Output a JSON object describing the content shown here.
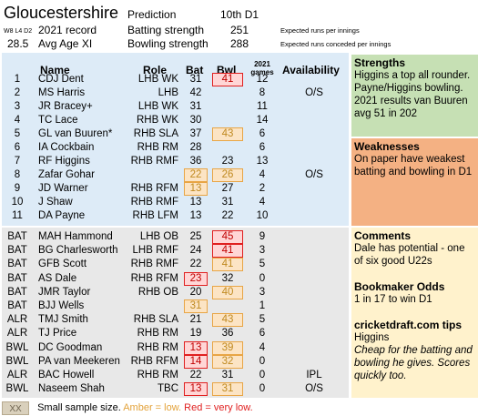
{
  "header": {
    "team": "Gloucestershire",
    "record_small": "W8 L4 D2",
    "record_label": "2021 record",
    "avg_age_value": "28.5",
    "avg_age_label": "Avg Age XI",
    "prediction_label": "Prediction",
    "prediction_value": "10th D1",
    "batting_label": "Batting strength",
    "batting_value": "251",
    "bowling_label": "Bowling strength",
    "bowling_value": "288",
    "batting_note": "Expected runs per innings",
    "bowling_note": "Expected runs conceded per innings"
  },
  "table": {
    "headers": {
      "name": "Name",
      "role": "Role",
      "bat": "Bat",
      "bwl": "Bwl",
      "games": "2021 games",
      "availability": "Availability"
    },
    "xi": [
      {
        "key": "1",
        "name": "CDJ Dent",
        "role": "LHB WK",
        "bat": "31",
        "bwl": "41",
        "games": "12",
        "avail": "",
        "bat_flag": "",
        "bwl_flag": "red"
      },
      {
        "key": "2",
        "name": "MS Harris",
        "role": "LHB",
        "bat": "42",
        "bwl": "",
        "games": "8",
        "avail": "O/S",
        "bat_flag": "",
        "bwl_flag": ""
      },
      {
        "key": "3",
        "name": "JR Bracey+",
        "role": "LHB WK",
        "bat": "31",
        "bwl": "",
        "games": "11",
        "avail": "",
        "bat_flag": "",
        "bwl_flag": ""
      },
      {
        "key": "4",
        "name": "TC Lace",
        "role": "RHB WK",
        "bat": "30",
        "bwl": "",
        "games": "14",
        "avail": "",
        "bat_flag": "",
        "bwl_flag": ""
      },
      {
        "key": "5",
        "name": "GL van Buuren*",
        "role": "RHB SLA",
        "bat": "37",
        "bwl": "43",
        "games": "6",
        "avail": "",
        "bat_flag": "",
        "bwl_flag": "amber"
      },
      {
        "key": "6",
        "name": "IA Cockbain",
        "role": "RHB RM",
        "bat": "28",
        "bwl": "",
        "games": "6",
        "avail": "",
        "bat_flag": "",
        "bwl_flag": ""
      },
      {
        "key": "7",
        "name": "RF Higgins",
        "role": "RHB RMF",
        "bat": "36",
        "bwl": "23",
        "games": "13",
        "avail": "",
        "bat_flag": "",
        "bwl_flag": ""
      },
      {
        "key": "8",
        "name": "Zafar Gohar",
        "role": "",
        "bat": "22",
        "bwl": "26",
        "games": "4",
        "avail": "O/S",
        "bat_flag": "amber",
        "bwl_flag": "amber"
      },
      {
        "key": "9",
        "name": "JD Warner",
        "role": "RHB RFM",
        "bat": "13",
        "bwl": "27",
        "games": "2",
        "avail": "",
        "bat_flag": "amber",
        "bwl_flag": ""
      },
      {
        "key": "10",
        "name": "J Shaw",
        "role": "RHB RMF",
        "bat": "13",
        "bwl": "31",
        "games": "4",
        "avail": "",
        "bat_flag": "",
        "bwl_flag": ""
      },
      {
        "key": "11",
        "name": "DA Payne",
        "role": "RHB LFM",
        "bat": "13",
        "bwl": "22",
        "games": "10",
        "avail": "",
        "bat_flag": "",
        "bwl_flag": ""
      }
    ],
    "squad": [
      {
        "key": "BAT",
        "name": "MAH Hammond",
        "role": "LHB OB",
        "bat": "25",
        "bwl": "45",
        "games": "9",
        "avail": "",
        "bat_flag": "",
        "bwl_flag": "red"
      },
      {
        "key": "BAT",
        "name": "BG Charlesworth",
        "role": "LHB RMF",
        "bat": "24",
        "bwl": "41",
        "games": "3",
        "avail": "",
        "bat_flag": "",
        "bwl_flag": "red"
      },
      {
        "key": "BAT",
        "name": "GFB Scott",
        "role": "RHB RMF",
        "bat": "22",
        "bwl": "41",
        "games": "5",
        "avail": "",
        "bat_flag": "",
        "bwl_flag": "amber"
      },
      {
        "key": "BAT",
        "name": "AS Dale",
        "role": "RHB RFM",
        "bat": "23",
        "bwl": "32",
        "games": "0",
        "avail": "",
        "bat_flag": "red",
        "bwl_flag": ""
      },
      {
        "key": "BAT",
        "name": "JMR Taylor",
        "role": "RHB OB",
        "bat": "20",
        "bwl": "40",
        "games": "3",
        "avail": "",
        "bat_flag": "",
        "bwl_flag": "amber"
      },
      {
        "key": "BAT",
        "name": "BJJ Wells",
        "role": "",
        "bat": "31",
        "bwl": "",
        "games": "1",
        "avail": "",
        "bat_flag": "amber",
        "bwl_flag": ""
      },
      {
        "key": "ALR",
        "name": "TMJ Smith",
        "role": "RHB SLA",
        "bat": "21",
        "bwl": "43",
        "games": "5",
        "avail": "",
        "bat_flag": "",
        "bwl_flag": "amber"
      },
      {
        "key": "ALR",
        "name": "TJ Price",
        "role": "RHB RM",
        "bat": "19",
        "bwl": "36",
        "games": "6",
        "avail": "",
        "bat_flag": "",
        "bwl_flag": ""
      },
      {
        "key": "BWL",
        "name": "DC Goodman",
        "role": "RHB RM",
        "bat": "13",
        "bwl": "39",
        "games": "4",
        "avail": "",
        "bat_flag": "red",
        "bwl_flag": "amber"
      },
      {
        "key": "BWL",
        "name": "PA van Meekeren",
        "role": "RHB RFM",
        "bat": "14",
        "bwl": "32",
        "games": "0",
        "avail": "",
        "bat_flag": "red",
        "bwl_flag": "amber"
      },
      {
        "key": "ALR",
        "name": "BAC Howell",
        "role": "RHB RM",
        "bat": "22",
        "bwl": "31",
        "games": "0",
        "avail": "IPL",
        "bat_flag": "",
        "bwl_flag": ""
      },
      {
        "key": "BWL",
        "name": "Naseem Shah",
        "role": "TBC",
        "bat": "13",
        "bwl": "31",
        "games": "0",
        "avail": "O/S",
        "bat_flag": "red",
        "bwl_flag": "amber"
      }
    ]
  },
  "panels": {
    "strengths_title": "Strengths",
    "strengths_text": "Higgins a top all rounder. Payne/Higgins bowling. 2021 results van Buuren avg 51 in 202",
    "weaknesses_title": "Weaknesses",
    "weaknesses_text": "On paper have weakest batting and bowling in D1",
    "comments_title": "Comments",
    "comments_text": "Dale has potential - one of six good U22s",
    "odds_title": "Bookmaker Odds",
    "odds_text": "1 in 17 to win D1",
    "tips_title": "cricketdraft.com tips",
    "tips_text1": "Higgins",
    "tips_text2": "Cheap for the batting and bowling he gives. Scores quickly too."
  },
  "legend": {
    "box": "XX",
    "text1": "Small sample size.",
    "amber": "Amber = low.",
    "red": "Red = very low."
  },
  "colors": {
    "blue_panel": "#ddebf7",
    "grey_panel": "#e8e8e8",
    "strengths": "#c6e0b4",
    "weaknesses": "#f4b183",
    "comments": "#fff2cc",
    "amber": "#e8a545",
    "red": "#e02020"
  }
}
